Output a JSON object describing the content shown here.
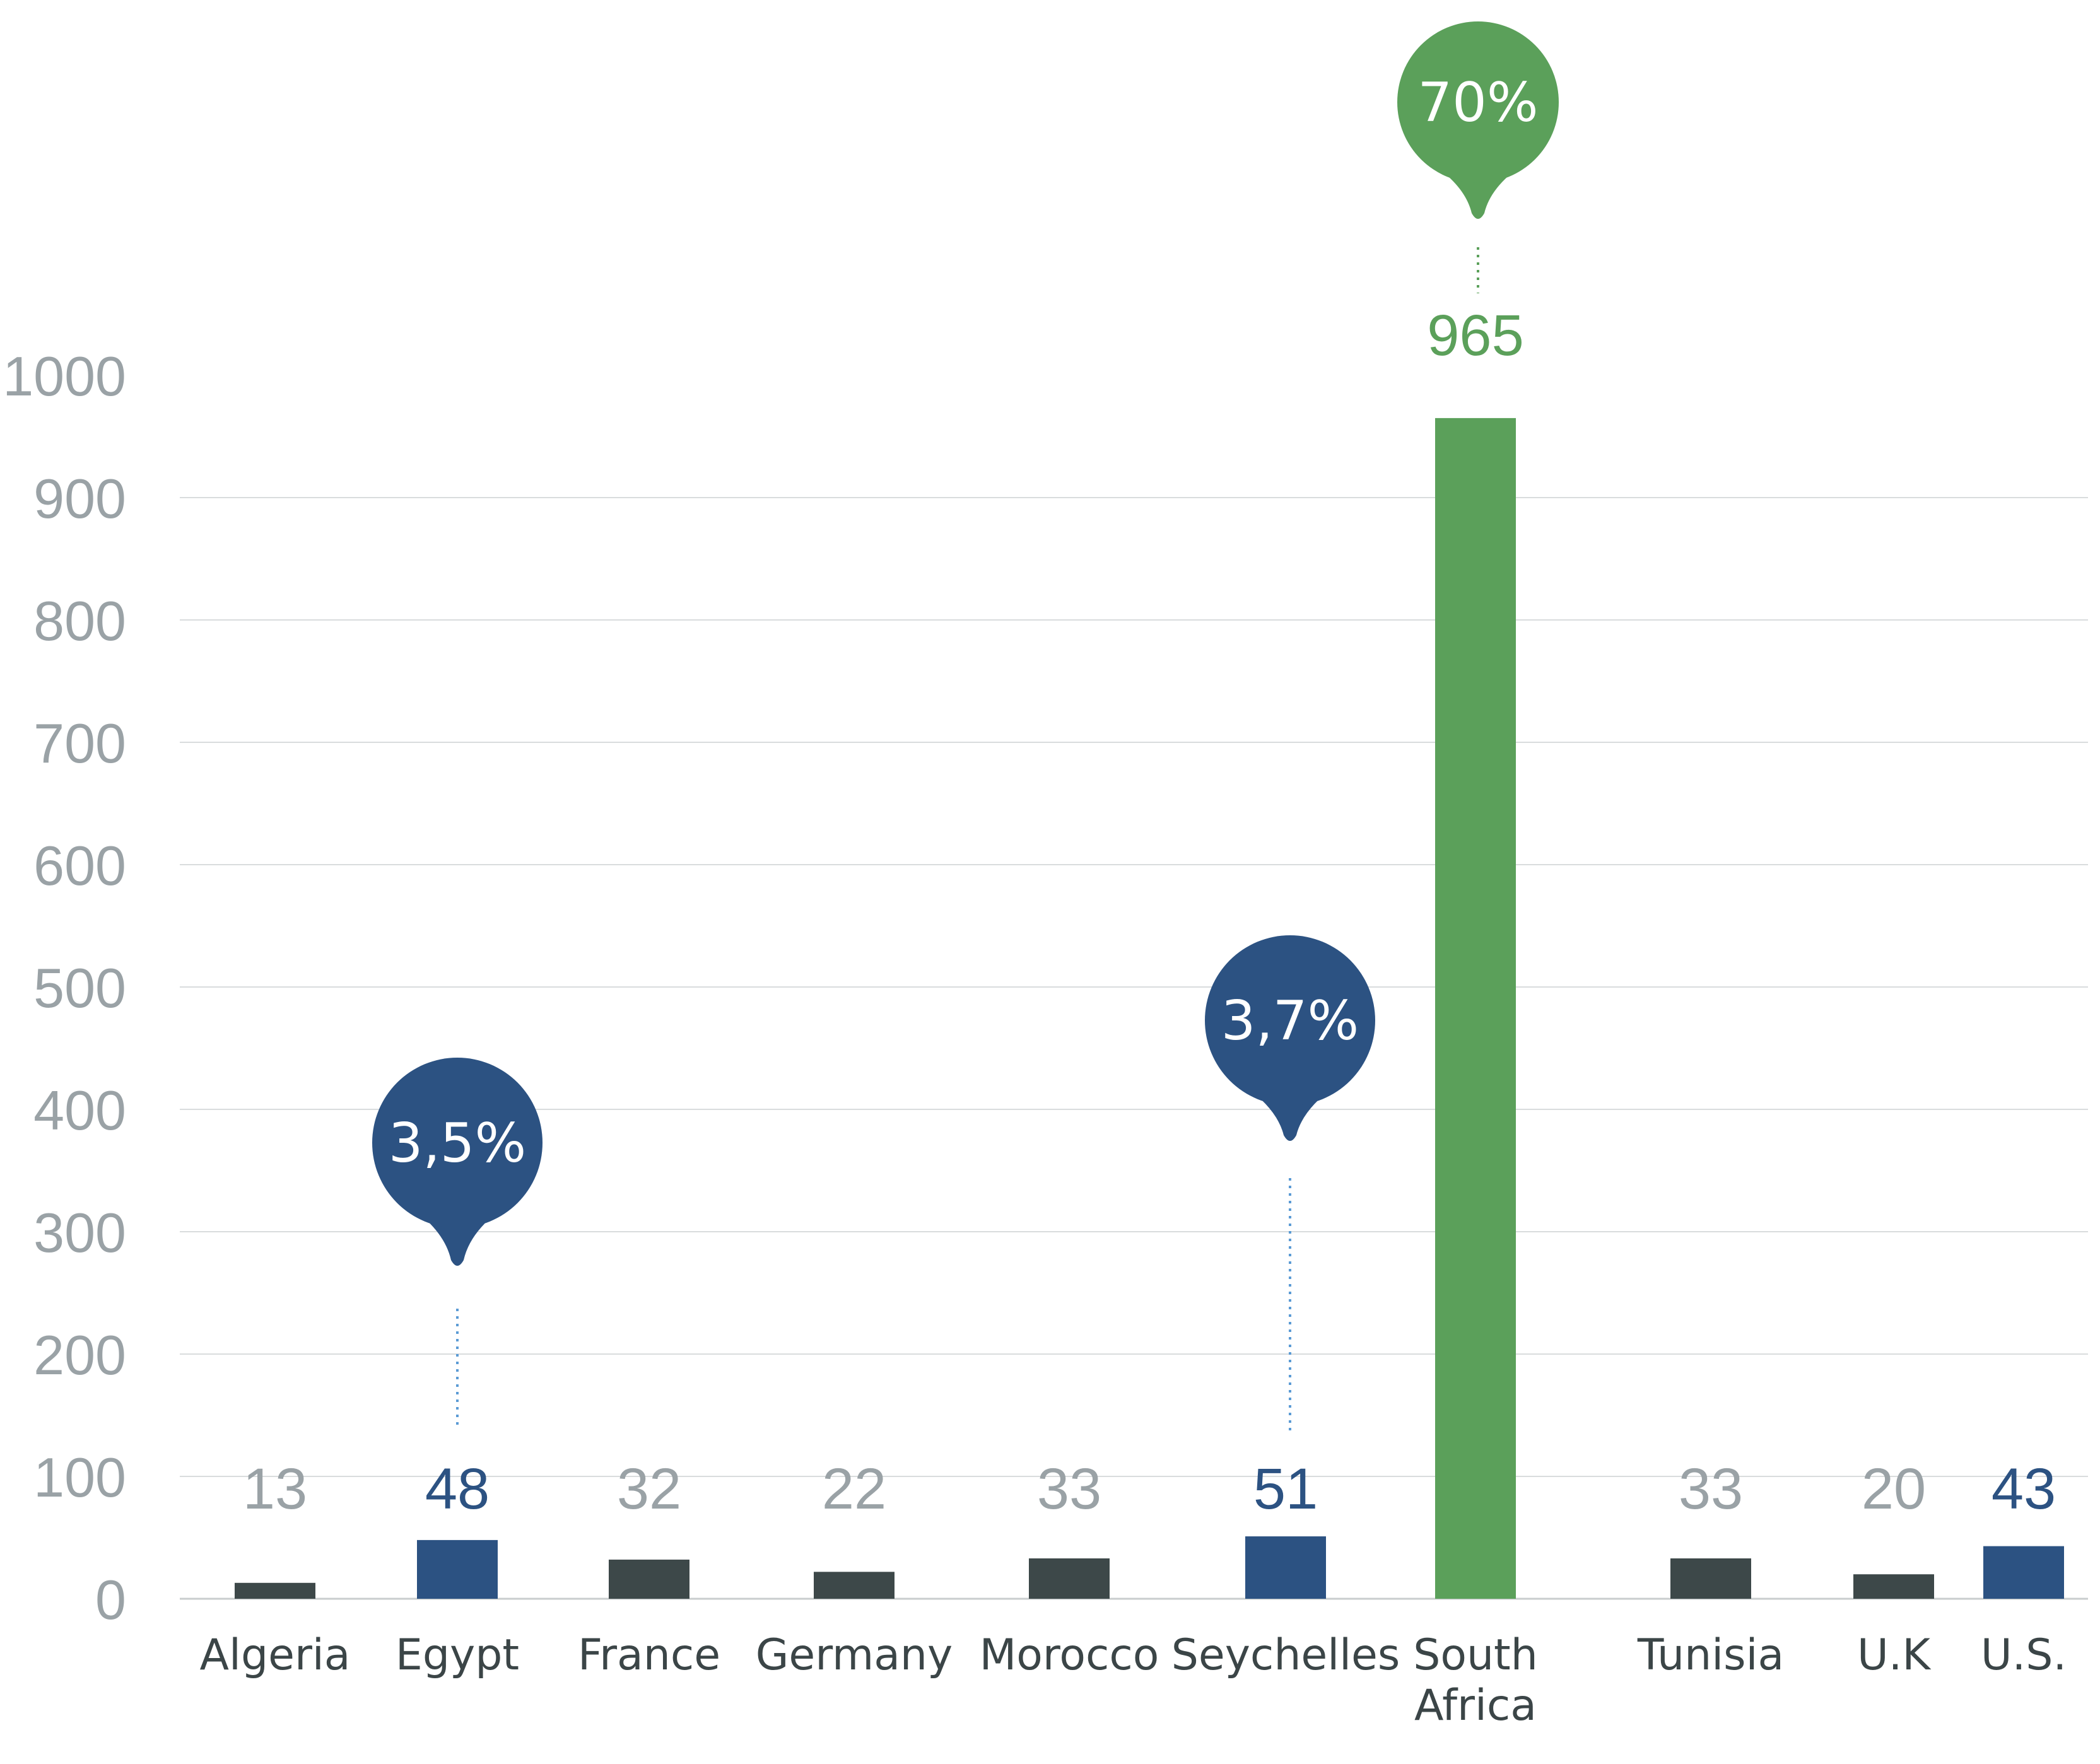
{
  "chart_data": {
    "type": "bar",
    "categories": [
      "Algeria",
      "Egypt",
      "France",
      "Germany",
      "Morocco",
      "Seychelles",
      "South Africa",
      "Tunisia",
      "U.K",
      "U.S."
    ],
    "category_lines": [
      [
        "Algeria"
      ],
      [
        "Egypt"
      ],
      [
        "France"
      ],
      [
        "Germany"
      ],
      [
        "Morocco"
      ],
      [
        "Seychelles"
      ],
      [
        "South",
        "Africa"
      ],
      [
        "Tunisia"
      ],
      [
        "U.K"
      ],
      [
        "U.S."
      ]
    ],
    "values": [
      13,
      48,
      32,
      22,
      33,
      51,
      965,
      33,
      20,
      43
    ],
    "value_labels": [
      "13",
      "48",
      "32",
      "22",
      "33",
      "51",
      "965",
      "33",
      "20",
      "43"
    ],
    "bar_colors": [
      "#3d4849",
      "#2c5282",
      "#3d4849",
      "#3d4849",
      "#3d4849",
      "#2c5282",
      "#5ba05a",
      "#3d4849",
      "#3d4849",
      "#2c5282"
    ],
    "label_colors": [
      "#9aa2a6",
      "#2c5282",
      "#9aa2a6",
      "#9aa2a6",
      "#9aa2a6",
      "#2c5282",
      "#5ba05a",
      "#9aa2a6",
      "#9aa2a6",
      "#2c5282"
    ],
    "callouts": [
      {
        "category": "Egypt",
        "text": "3,5%",
        "color": "#2c5282"
      },
      {
        "category": "Seychelles",
        "text": "3,7%",
        "color": "#2c5282"
      },
      {
        "category": "South Africa",
        "text": "70%",
        "color": "#5ba05a"
      }
    ],
    "yticks": [
      "0",
      "100",
      "200",
      "300",
      "400",
      "500",
      "600",
      "700",
      "800",
      "900",
      "1000"
    ],
    "ylim": [
      0,
      1000
    ],
    "grid": true,
    "gridline_color": "#d9dcdd",
    "title": "",
    "xlabel": "",
    "ylabel": ""
  }
}
